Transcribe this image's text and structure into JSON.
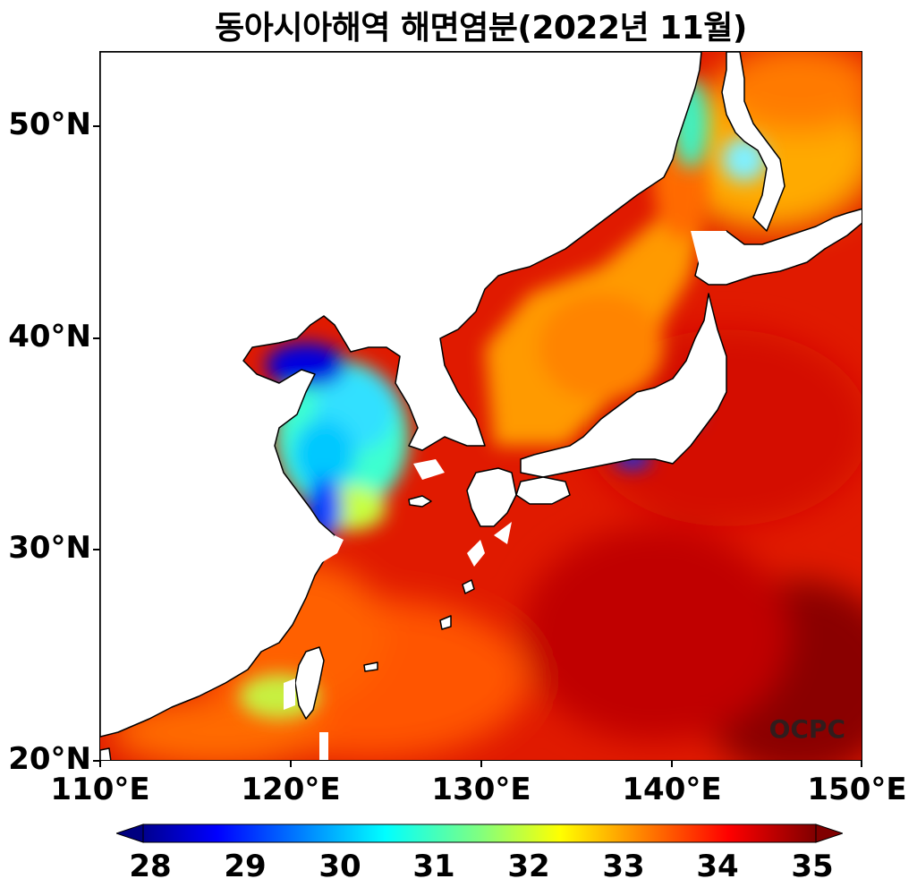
{
  "title": "동아시아해역 해면염분(2022년 11월)",
  "map": {
    "lon_range": [
      110,
      150
    ],
    "lat_range": [
      20,
      53.5
    ],
    "x_ticks": [
      "110°E",
      "120°E",
      "130°E",
      "140°E",
      "150°E"
    ],
    "y_ticks": [
      "20°N",
      "30°N",
      "40°N",
      "50°N"
    ],
    "watermark": "OCPC"
  },
  "colorbar": {
    "min": 28,
    "max": 35,
    "labels": [
      "28",
      "29",
      "30",
      "31",
      "32",
      "33",
      "34",
      "35"
    ],
    "colormap": [
      "#00008f",
      "#0000ff",
      "#0080ff",
      "#00ffff",
      "#80ff80",
      "#ffff00",
      "#ff8000",
      "#ff0000",
      "#800000"
    ]
  },
  "colors": {
    "land": "#ffffff",
    "coastline": "#000000"
  }
}
